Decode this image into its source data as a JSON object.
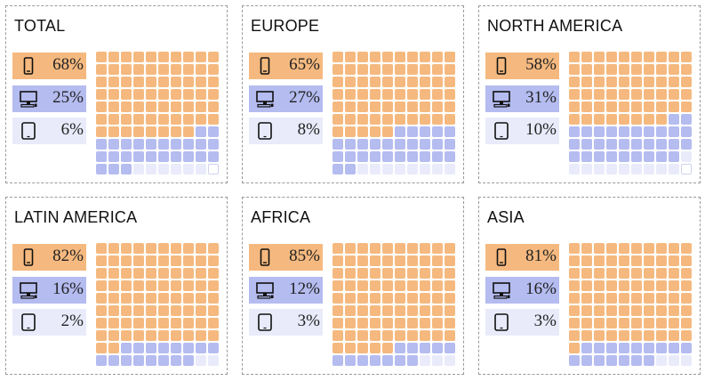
{
  "colors": {
    "mobile": "#f5b97f",
    "desktop": "#b4bcf0",
    "tablet": "#e9ebfb"
  },
  "icons": {
    "mobile": "smartphone-icon",
    "desktop": "desktop-computer-icon",
    "tablet": "tablet-icon"
  },
  "chart_data": [
    {
      "type": "waffle",
      "title": "TOTAL",
      "categories": [
        "mobile",
        "desktop",
        "tablet"
      ],
      "values": [
        68,
        25,
        6
      ],
      "labels": [
        "68%",
        "25%",
        "6%"
      ],
      "grid": [
        10,
        10
      ]
    },
    {
      "type": "waffle",
      "title": "EUROPE",
      "categories": [
        "mobile",
        "desktop",
        "tablet"
      ],
      "values": [
        65,
        27,
        8
      ],
      "labels": [
        "65%",
        "27%",
        "8%"
      ],
      "grid": [
        10,
        10
      ]
    },
    {
      "type": "waffle",
      "title": "NORTH AMERICA",
      "categories": [
        "mobile",
        "desktop",
        "tablet"
      ],
      "values": [
        58,
        31,
        10
      ],
      "labels": [
        "58%",
        "31%",
        "10%"
      ],
      "grid": [
        10,
        10
      ]
    },
    {
      "type": "waffle",
      "title": "LATIN AMERICA",
      "categories": [
        "mobile",
        "desktop",
        "tablet"
      ],
      "values": [
        82,
        16,
        2
      ],
      "labels": [
        "82%",
        "16%",
        "2%"
      ],
      "grid": [
        10,
        10
      ]
    },
    {
      "type": "waffle",
      "title": "AFRICA",
      "categories": [
        "mobile",
        "desktop",
        "tablet"
      ],
      "values": [
        85,
        12,
        3
      ],
      "labels": [
        "85%",
        "12%",
        "3%"
      ],
      "grid": [
        10,
        10
      ]
    },
    {
      "type": "waffle",
      "title": "ASIA",
      "categories": [
        "mobile",
        "desktop",
        "tablet"
      ],
      "values": [
        81,
        16,
        3
      ],
      "labels": [
        "81%",
        "16%",
        "3%"
      ],
      "grid": [
        10,
        10
      ]
    }
  ]
}
